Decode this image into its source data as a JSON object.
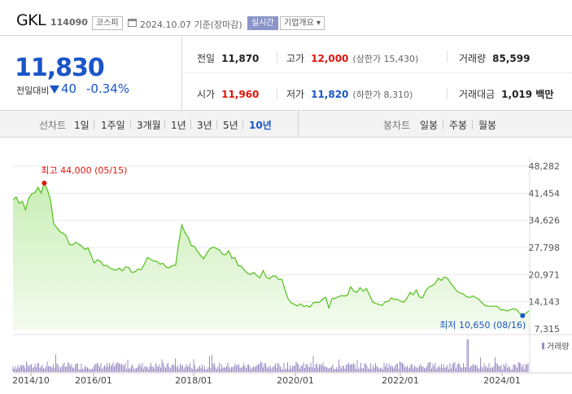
{
  "header": {
    "name": "GKL",
    "code": "114090",
    "market": "코스피",
    "date": "2024.10.07",
    "basis": "기준(장마감)",
    "realtime": "실시간",
    "corp_info": "기업개요 ▾"
  },
  "price": {
    "current": "11,830",
    "prev_label": "전일대비",
    "change": "40",
    "change_pct": "-0.34%"
  },
  "stats": {
    "prev_close": {
      "label": "전일",
      "value": "11,870"
    },
    "high": {
      "label": "고가",
      "value": "12,000",
      "sub": "(상한가 15,430)"
    },
    "volume": {
      "label": "거래량",
      "value": "85,599"
    },
    "open": {
      "label": "시가",
      "value": "11,960"
    },
    "low": {
      "label": "저가",
      "value": "11,820",
      "sub": "(하한가 8,310)"
    },
    "amount": {
      "label": "거래대금",
      "value": "1,019 백만"
    }
  },
  "tabs": {
    "line_chart_label": "선차트",
    "line_periods": [
      "1일",
      "1주일",
      "3개월",
      "1년",
      "3년",
      "5년",
      "10년"
    ],
    "active_period": "10년",
    "candle_chart_label": "봉차트",
    "candle_periods": [
      "일봉",
      "주봉",
      "월봉"
    ]
  },
  "chart_data": {
    "type": "area",
    "y_ticks": [
      "48,282",
      "41,454",
      "34,626",
      "27,798",
      "20,971",
      "14,143",
      "7,315"
    ],
    "ylim": [
      7315,
      48282
    ],
    "x_ticks": [
      "2014/10",
      "2016/01",
      "2018/01",
      "2020/01",
      "2022/01",
      "2024/01"
    ],
    "high_annotation": "최고 44,000 (05/15)",
    "low_annotation": "최저 10,650 (08/16)",
    "volume_legend": "거래량",
    "colors": {
      "line": "#52c11a",
      "fill": "#dff5d2",
      "high_marker": "#e0150c",
      "low_marker": "#1a55c8",
      "volume": "#9b8ec4"
    },
    "series": [
      {
        "values": [
          39800,
          40500,
          38900,
          39400,
          37300,
          40200,
          41300,
          41600,
          42900,
          41500,
          44000,
          42300,
          39700,
          33800,
          32800,
          31800,
          31400,
          30700,
          28600,
          28400,
          29100,
          28700,
          28100,
          27300,
          27700,
          25700,
          23900,
          24700,
          24300,
          23200,
          23300,
          22600,
          22300,
          22100,
          22600,
          21900,
          22900,
          22800,
          21500,
          21700,
          22400,
          22200,
          23600,
          25300,
          24800,
          24400,
          24300,
          23600,
          23800,
          22800,
          22700,
          23300,
          23300,
          28800,
          33500,
          31500,
          30400,
          28300,
          28100,
          26800,
          25800,
          25000,
          26400,
          27500,
          27900,
          27600,
          27200,
          26100,
          26000,
          27000,
          25100,
          25200,
          23200,
          23100,
          22100,
          21300,
          21000,
          21500,
          20700,
          20200,
          22000,
          20400,
          19900,
          20600,
          20600,
          19700,
          19800,
          17100,
          14900,
          13800,
          13500,
          13100,
          13600,
          12900,
          13200,
          12800,
          13900,
          14000,
          14000,
          14800,
          15300,
          12600,
          14900,
          15000,
          15400,
          15700,
          15600,
          15800,
          17900,
          16800,
          16500,
          17700,
          16800,
          17500,
          15900,
          14100,
          13700,
          13500,
          13200,
          14100,
          14200,
          15100,
          14700,
          14700,
          14300,
          14000,
          15000,
          16500,
          15900,
          17100,
          15300,
          15100,
          16900,
          17800,
          18200,
          18700,
          20100,
          19500,
          20400,
          20000,
          18800,
          17800,
          16800,
          16300,
          16100,
          15400,
          15200,
          15600,
          15200,
          14700,
          13900,
          13200,
          13000,
          13000,
          13000,
          12900,
          12100,
          12100,
          11800,
          12100,
          12400,
          12200,
          11300,
          10650,
          11200,
          11830
        ]
      }
    ]
  }
}
